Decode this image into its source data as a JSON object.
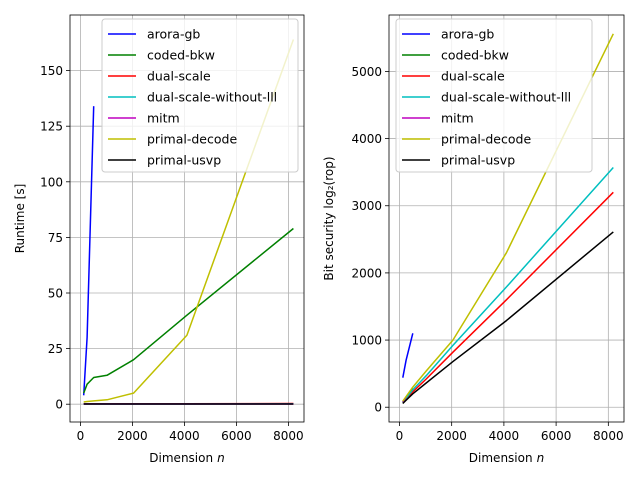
{
  "chart_data": [
    {
      "type": "line",
      "xlabel": "Dimension",
      "xlabel_var": "n",
      "ylabel": "Runtime [s]",
      "xlim": [
        -400,
        8600
      ],
      "ylim": [
        -8,
        175
      ],
      "xticks": [
        0,
        2000,
        4000,
        6000,
        8000
      ],
      "yticks": [
        0,
        25,
        50,
        75,
        100,
        125,
        150
      ],
      "grid": true,
      "legend_position": "top-right",
      "series": [
        {
          "name": "arora-gb",
          "color": "#0000ff",
          "x": [
            128,
            256,
            512
          ],
          "y": [
            4,
            30,
            134
          ]
        },
        {
          "name": "coded-bkw",
          "color": "#008000",
          "x": [
            128,
            256,
            512,
            1024,
            2048,
            4096,
            8192
          ],
          "y": [
            5,
            9,
            12,
            13,
            20,
            40,
            79
          ]
        },
        {
          "name": "dual-scale",
          "color": "#ff0000",
          "x": [
            128,
            256,
            512,
            1024,
            2048,
            4096,
            8192
          ],
          "y": [
            0.2,
            0.2,
            0.2,
            0.2,
            0.2,
            0.2,
            0.3
          ]
        },
        {
          "name": "dual-scale-without-lll",
          "color": "#00bfbf",
          "x": [
            128,
            256,
            512,
            1024,
            2048,
            4096,
            8192
          ],
          "y": [
            0.1,
            0.1,
            0.1,
            0.1,
            0.1,
            0.1,
            0.2
          ]
        },
        {
          "name": "mitm",
          "color": "#bf00bf",
          "x": [
            128,
            256,
            512,
            1024,
            2048,
            4096,
            8192
          ],
          "y": [
            0.1,
            0.1,
            0.1,
            0.1,
            0.1,
            0.1,
            0.1
          ]
        },
        {
          "name": "primal-decode",
          "color": "#bfbf00",
          "x": [
            128,
            256,
            512,
            1024,
            2048,
            4096,
            8192
          ],
          "y": [
            1,
            1.2,
            1.5,
            2,
            5,
            31,
            164
          ]
        },
        {
          "name": "primal-usvp",
          "color": "#000000",
          "x": [
            128,
            256,
            512,
            1024,
            2048,
            4096,
            8192
          ],
          "y": [
            0.1,
            0.1,
            0.1,
            0.1,
            0.1,
            0.1,
            0.1
          ]
        }
      ]
    },
    {
      "type": "line",
      "xlabel": "Dimension",
      "xlabel_var": "n",
      "ylabel": "Bit security",
      "ylabel_math": "log₂(rop)",
      "xlim": [
        -400,
        8600
      ],
      "ylim": [
        -220,
        5840
      ],
      "xticks": [
        0,
        2000,
        4000,
        6000,
        8000
      ],
      "yticks": [
        0,
        1000,
        2000,
        3000,
        4000,
        5000
      ],
      "grid": true,
      "legend_position": "top-left",
      "series": [
        {
          "name": "arora-gb",
          "color": "#0000ff",
          "x": [
            128,
            256,
            512
          ],
          "y": [
            440,
            700,
            1100
          ]
        },
        {
          "name": "coded-bkw",
          "color": "#008000",
          "x": [
            128,
            256,
            512
          ],
          "y": [
            80,
            150,
            280
          ]
        },
        {
          "name": "dual-scale",
          "color": "#ff0000",
          "x": [
            128,
            256,
            512,
            1024,
            2048,
            4096,
            8192
          ],
          "y": [
            60,
            120,
            230,
            420,
            820,
            1600,
            3200
          ]
        },
        {
          "name": "dual-scale-without-lll",
          "color": "#00bfbf",
          "x": [
            128,
            256,
            512,
            1024,
            2048,
            4096,
            8192
          ],
          "y": [
            70,
            135,
            260,
            470,
            920,
            1790,
            3570
          ]
        },
        {
          "name": "mitm",
          "color": "#bf00bf",
          "x": [
            128,
            256
          ],
          "y": [
            80,
            150
          ]
        },
        {
          "name": "primal-decode",
          "color": "#bfbf00",
          "x": [
            128,
            256,
            512,
            1024,
            2048,
            4096,
            8192
          ],
          "y": [
            90,
            160,
            300,
            540,
            1000,
            2300,
            5560
          ]
        },
        {
          "name": "primal-usvp",
          "color": "#000000",
          "x": [
            128,
            256,
            512,
            1024,
            2048,
            4096,
            8192
          ],
          "y": [
            55,
            105,
            200,
            360,
            680,
            1290,
            2610
          ]
        }
      ]
    }
  ]
}
